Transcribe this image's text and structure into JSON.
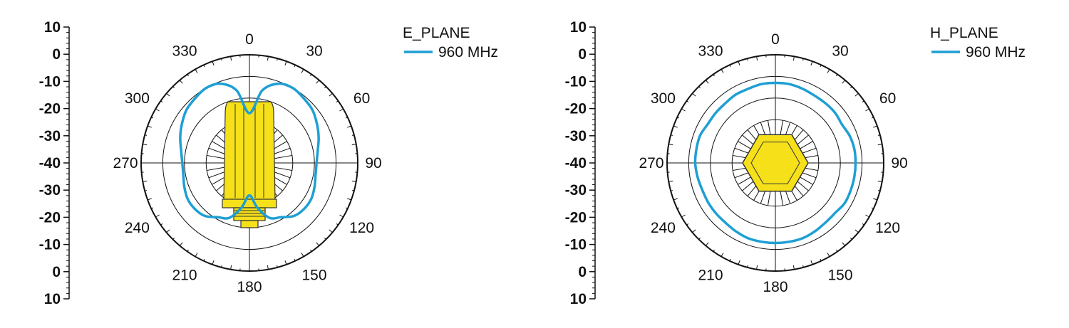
{
  "chart_data": [
    {
      "type": "polar",
      "legend_title": "E_PLANE",
      "series": [
        {
          "name": "960 MHz",
          "color": "#1e9fd4",
          "theta": [
            0,
            10,
            20,
            30,
            40,
            50,
            60,
            70,
            80,
            90,
            100,
            110,
            120,
            130,
            140,
            150,
            160,
            170,
            180,
            190,
            200,
            210,
            220,
            230,
            240,
            250,
            260,
            270,
            280,
            290,
            300,
            310,
            320,
            330,
            340,
            350
          ],
          "r": [
            -17,
            -6,
            -1,
            0,
            -1,
            -2,
            -4,
            -6,
            -8,
            -9,
            -9,
            -8,
            -7,
            -7,
            -8,
            -11,
            -13,
            -19,
            -25,
            -19,
            -13,
            -11,
            -8,
            -7,
            -7,
            -8,
            -9,
            -9,
            -8,
            -6,
            -4,
            -2,
            -1,
            0,
            -1,
            -6
          ]
        }
      ],
      "r_scale_labels": [
        "10",
        "0",
        "-10",
        "-20",
        "-30",
        "-40",
        "-30",
        "-20",
        "-10",
        "0",
        "10"
      ],
      "angle_labels": [
        "0",
        "30",
        "60",
        "90",
        "120",
        "150",
        "180",
        "210",
        "240",
        "270",
        "300",
        "330"
      ],
      "rlim": [
        -40,
        10
      ],
      "rings": [
        0,
        -10,
        -20,
        -30
      ],
      "legend_position": "top-right",
      "antenna_icon": "antenna-side-view",
      "antenna_color": "#f5e01a"
    },
    {
      "type": "polar",
      "legend_title": "H_PLANE",
      "series": [
        {
          "name": "960 MHz",
          "color": "#1e9fd4",
          "theta": [
            0,
            10,
            20,
            30,
            40,
            50,
            60,
            70,
            80,
            90,
            100,
            110,
            120,
            130,
            140,
            150,
            160,
            170,
            180,
            190,
            200,
            210,
            220,
            230,
            240,
            250,
            260,
            270,
            280,
            290,
            300,
            310,
            320,
            330,
            340,
            350
          ],
          "r": [
            -3,
            -3,
            -3.5,
            -4,
            -4,
            -4,
            -4.5,
            -3.5,
            -3,
            -3,
            -3,
            -3,
            -3,
            -4,
            -4,
            -3.5,
            -3,
            -3,
            -3,
            -3,
            -3,
            -3.5,
            -4,
            -4,
            -4,
            -4,
            -3.5,
            -3,
            -3,
            -3,
            -4,
            -4,
            -4,
            -3.5,
            -3.5,
            -3
          ]
        }
      ],
      "r_scale_labels": [
        "10",
        "0",
        "-10",
        "-20",
        "-30",
        "-40",
        "-30",
        "-20",
        "-10",
        "0",
        "10"
      ],
      "angle_labels": [
        "0",
        "30",
        "60",
        "90",
        "120",
        "150",
        "180",
        "210",
        "240",
        "270",
        "300",
        "330"
      ],
      "rlim": [
        -40,
        10
      ],
      "rings": [
        0,
        -10,
        -20,
        -30
      ],
      "legend_position": "top-right",
      "antenna_icon": "antenna-top-view",
      "antenna_color": "#f5e01a"
    }
  ]
}
